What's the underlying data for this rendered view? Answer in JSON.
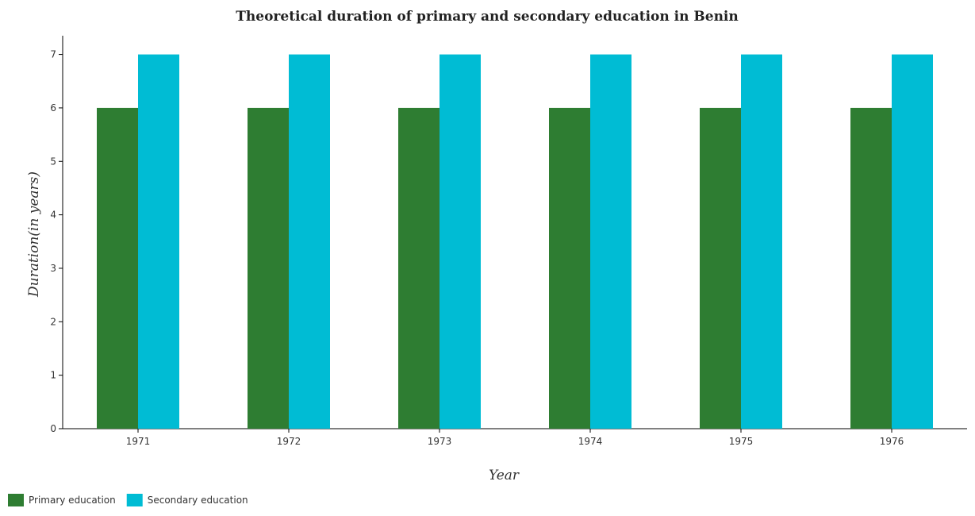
{
  "chart_data": {
    "type": "bar",
    "title": "Theoretical duration of primary and secondary education in Benin",
    "xlabel": "Year",
    "ylabel": "Duration(in years)",
    "categories": [
      "1971",
      "1972",
      "1973",
      "1974",
      "1975",
      "1976"
    ],
    "series": [
      {
        "name": "Primary education",
        "values": [
          6,
          6,
          6,
          6,
          6,
          6
        ],
        "color": "#2e7d32"
      },
      {
        "name": "Secondary education",
        "values": [
          7,
          7,
          7,
          7,
          7,
          7
        ],
        "color": "#00bcd4"
      }
    ],
    "ylim": [
      0,
      7.35
    ],
    "yticks": [
      0,
      1,
      2,
      3,
      4,
      5,
      6,
      7
    ],
    "grid": false,
    "legend_position": "bottom-left"
  }
}
